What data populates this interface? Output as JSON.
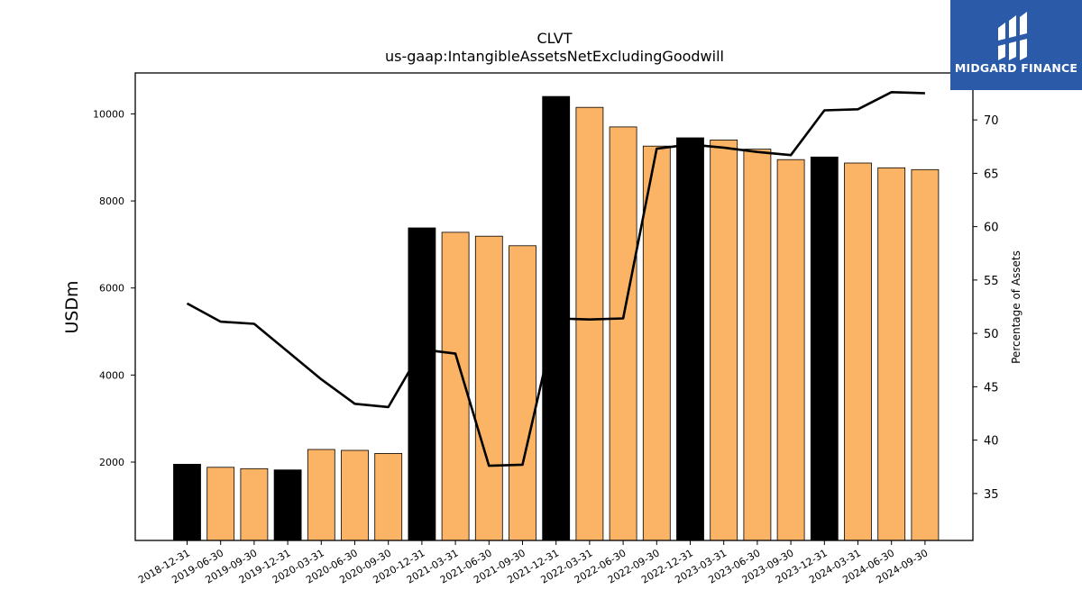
{
  "chart_data": {
    "type": "bar",
    "title": "CLVT",
    "subtitle": "us-gaap:IntangibleAssetsNetExcludingGoodwill",
    "ylabel": "USDm",
    "y2label": "Percentage of Assets",
    "categories": [
      "2018-12-31",
      "2019-06-30",
      "2019-09-30",
      "2019-12-31",
      "2020-03-31",
      "2020-06-30",
      "2020-09-30",
      "2020-12-31",
      "2021-03-31",
      "2021-06-30",
      "2021-09-30",
      "2021-12-31",
      "2022-03-31",
      "2022-06-30",
      "2022-09-30",
      "2022-12-31",
      "2023-03-31",
      "2023-06-30",
      "2023-09-30",
      "2023-12-31",
      "2024-03-31",
      "2024-06-30",
      "2024-09-30"
    ],
    "series": [
      {
        "type": "bar",
        "axis": "left",
        "values": [
          1950,
          1880,
          1850,
          1820,
          2290,
          2270,
          2200,
          7380,
          7280,
          7190,
          6970,
          10400,
          10150,
          9700,
          9260,
          9450,
          9400,
          9190,
          8950,
          9010,
          8870,
          8760,
          8720
        ],
        "annual": [
          true,
          false,
          false,
          true,
          false,
          false,
          false,
          true,
          false,
          false,
          false,
          true,
          false,
          false,
          false,
          true,
          false,
          false,
          false,
          true,
          false,
          false,
          false
        ]
      },
      {
        "type": "line",
        "axis": "right",
        "values": [
          52.8,
          51.1,
          50.9,
          48.3,
          45.7,
          43.4,
          43.1,
          48.5,
          48.1,
          37.6,
          37.7,
          51.4,
          51.3,
          51.4,
          67.3,
          67.7,
          67.4,
          67.0,
          66.7,
          70.9,
          71.0,
          72.6,
          72.5
        ]
      }
    ],
    "yticks": [
      2000,
      4000,
      6000,
      8000,
      10000
    ],
    "y2ticks": [
      35,
      40,
      45,
      50,
      55,
      60,
      65,
      70
    ],
    "ylim": [
      200,
      10940
    ],
    "y2lim": [
      30.6,
      74.4
    ],
    "grid": false,
    "colors": {
      "annual_bar": "#000000",
      "quarter_bar": "#fbb365",
      "line": "#000000",
      "bar_edge": "#000000"
    }
  },
  "logo": {
    "text": "MIDGARD FINANCE",
    "background": "#2a5aa8"
  }
}
